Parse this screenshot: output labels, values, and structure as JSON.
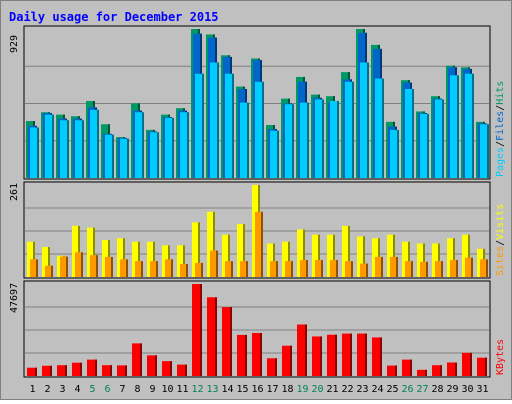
{
  "chart_data": [
    {
      "type": "bar",
      "title": "Daily usage for December 2015",
      "ylim": [
        0,
        929
      ],
      "y_max_label": "929",
      "categories": [
        "1",
        "2",
        "3",
        "4",
        "5",
        "6",
        "7",
        "8",
        "9",
        "10",
        "11",
        "12",
        "13",
        "14",
        "15",
        "16",
        "17",
        "18",
        "19",
        "20",
        "21",
        "22",
        "23",
        "24",
        "25",
        "26",
        "27",
        "28",
        "29",
        "30",
        "31"
      ],
      "weekend_days": [
        "5",
        "6",
        "12",
        "13",
        "19",
        "20",
        "26",
        "27"
      ],
      "series": [
        {
          "name": "Hits",
          "values": [
            355,
            410,
            395,
            385,
            480,
            335,
            255,
            465,
            300,
            395,
            435,
            929,
            895,
            765,
            570,
            745,
            330,
            495,
            630,
            520,
            510,
            660,
            929,
            830,
            350,
            610,
            415,
            510,
            700,
            690,
            350
          ]
        },
        {
          "name": "Files",
          "values": [
            325,
            405,
            370,
            370,
            440,
            275,
            250,
            420,
            290,
            380,
            420,
            900,
            875,
            755,
            555,
            735,
            305,
            465,
            600,
            500,
            470,
            615,
            905,
            805,
            320,
            595,
            405,
            495,
            690,
            680,
            340
          ]
        },
        {
          "name": "Pages",
          "values": [
            315,
            395,
            360,
            360,
            425,
            270,
            245,
            410,
            285,
            375,
            410,
            650,
            720,
            650,
            470,
            600,
            295,
            460,
            470,
            490,
            480,
            600,
            720,
            620,
            300,
            555,
            400,
            490,
            640,
            650,
            335
          ]
        }
      ],
      "colors": {
        "Hits": "#009966",
        "Files": "#0066cc",
        "Pages": "#00ccff"
      },
      "legend": [
        "Pages",
        "/",
        "Files",
        "/",
        "Hits"
      ],
      "legend_placement": "right",
      "grid": true
    },
    {
      "type": "bar",
      "ylim": [
        0,
        261
      ],
      "y_max_label": "261",
      "series": [
        {
          "name": "Visits",
          "values": [
            100,
            85,
            60,
            145,
            140,
            105,
            110,
            100,
            100,
            90,
            90,
            155,
            185,
            120,
            150,
            261,
            95,
            100,
            135,
            120,
            120,
            145,
            115,
            110,
            120,
            100,
            95,
            95,
            110,
            120,
            80
          ]
        },
        {
          "name": "Sites",
          "values": [
            50,
            32,
            58,
            70,
            62,
            57,
            50,
            45,
            45,
            50,
            37,
            40,
            75,
            45,
            45,
            185,
            45,
            45,
            48,
            48,
            48,
            45,
            38,
            57,
            57,
            45,
            43,
            45,
            48,
            55,
            50
          ]
        }
      ],
      "colors": {
        "Visits": "#ffff00",
        "Sites": "#ff9900"
      },
      "legend": [
        "Sites",
        "/",
        "Visits"
      ],
      "legend_placement": "right",
      "grid": true
    },
    {
      "type": "bar",
      "ylim": [
        0,
        47697
      ],
      "y_max_label": "47697",
      "series": [
        {
          "name": "KBytes",
          "values": [
            4300,
            5300,
            5600,
            6900,
            8500,
            5600,
            5500,
            16900,
            10700,
            7700,
            5900,
            47697,
            40800,
            35700,
            21300,
            22300,
            9200,
            15700,
            26700,
            20500,
            21400,
            22000,
            22000,
            20000,
            5400,
            8500,
            3200,
            5600,
            7000,
            12000,
            9500
          ]
        }
      ],
      "colors": {
        "KBytes": "#ff0000"
      },
      "legend": [
        "KBytes"
      ],
      "legend_placement": "right",
      "grid": true
    }
  ]
}
